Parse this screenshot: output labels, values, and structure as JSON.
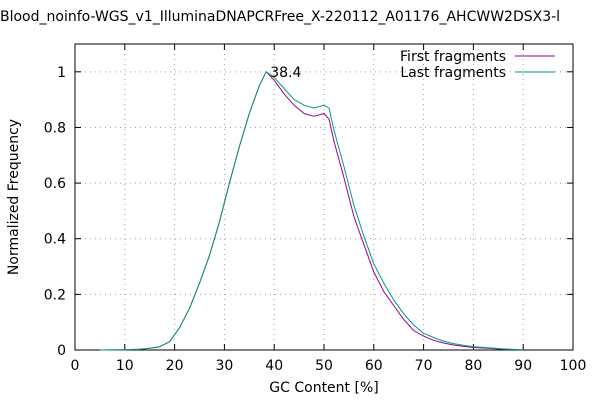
{
  "chart_data": {
    "type": "line",
    "title": "Blood_noinfo-WGS_v1_IlluminaDNAPCRFree_X-220112_A01176_AHCWW2DSX3-l",
    "xlabel": "GC Content [%]",
    "ylabel": "Normalized Frequency",
    "xlim": [
      0,
      100
    ],
    "ylim": [
      0,
      1.1
    ],
    "xticks": [
      "0",
      "10",
      "20",
      "30",
      "40",
      "50",
      "60",
      "70",
      "80",
      "90",
      "100"
    ],
    "yticks": [
      "0",
      "0.2",
      "0.4",
      "0.6",
      "0.8",
      "1"
    ],
    "grid": true,
    "legend_position": "top-right",
    "annotations": [
      {
        "text": "38.4",
        "x": 38.4,
        "y": 1.0
      }
    ],
    "series": [
      {
        "name": "First fragments",
        "color": "#990099",
        "points": [
          [
            5,
            0
          ],
          [
            10,
            0.001
          ],
          [
            13,
            0.003
          ],
          [
            15,
            0.006
          ],
          [
            17,
            0.012
          ],
          [
            19,
            0.03
          ],
          [
            21,
            0.08
          ],
          [
            23,
            0.15
          ],
          [
            25,
            0.24
          ],
          [
            27,
            0.34
          ],
          [
            29,
            0.46
          ],
          [
            31,
            0.6
          ],
          [
            33,
            0.73
          ],
          [
            35,
            0.85
          ],
          [
            37,
            0.95
          ],
          [
            38.4,
            1.0
          ],
          [
            40,
            0.97
          ],
          [
            42,
            0.92
          ],
          [
            44,
            0.88
          ],
          [
            46,
            0.85
          ],
          [
            48,
            0.84
          ],
          [
            50,
            0.85
          ],
          [
            51,
            0.83
          ],
          [
            52,
            0.75
          ],
          [
            54,
            0.62
          ],
          [
            56,
            0.48
          ],
          [
            58,
            0.38
          ],
          [
            60,
            0.28
          ],
          [
            62,
            0.21
          ],
          [
            64,
            0.16
          ],
          [
            66,
            0.11
          ],
          [
            68,
            0.07
          ],
          [
            70,
            0.05
          ],
          [
            72,
            0.035
          ],
          [
            74,
            0.025
          ],
          [
            76,
            0.018
          ],
          [
            78,
            0.013
          ],
          [
            80,
            0.009
          ],
          [
            83,
            0.006
          ],
          [
            86,
            0.003
          ],
          [
            90,
            0.001
          ]
        ]
      },
      {
        "name": "Last fragments",
        "color": "#009e73",
        "points": [
          [
            5,
            0
          ],
          [
            10,
            0.001
          ],
          [
            13,
            0.003
          ],
          [
            15,
            0.006
          ],
          [
            17,
            0.012
          ],
          [
            19,
            0.03
          ],
          [
            21,
            0.08
          ],
          [
            23,
            0.15
          ],
          [
            25,
            0.24
          ],
          [
            27,
            0.34
          ],
          [
            29,
            0.46
          ],
          [
            31,
            0.6
          ],
          [
            33,
            0.73
          ],
          [
            35,
            0.85
          ],
          [
            37,
            0.95
          ],
          [
            38.4,
            1.0
          ],
          [
            40,
            0.98
          ],
          [
            42,
            0.94
          ],
          [
            44,
            0.9
          ],
          [
            46,
            0.88
          ],
          [
            48,
            0.87
          ],
          [
            50,
            0.88
          ],
          [
            51,
            0.87
          ],
          [
            52,
            0.79
          ],
          [
            54,
            0.66
          ],
          [
            56,
            0.52
          ],
          [
            58,
            0.41
          ],
          [
            60,
            0.31
          ],
          [
            62,
            0.24
          ],
          [
            64,
            0.18
          ],
          [
            66,
            0.13
          ],
          [
            68,
            0.09
          ],
          [
            70,
            0.06
          ],
          [
            72,
            0.045
          ],
          [
            74,
            0.032
          ],
          [
            76,
            0.023
          ],
          [
            78,
            0.017
          ],
          [
            80,
            0.012
          ],
          [
            83,
            0.008
          ],
          [
            86,
            0.004
          ],
          [
            90,
            0.001
          ]
        ]
      }
    ]
  }
}
